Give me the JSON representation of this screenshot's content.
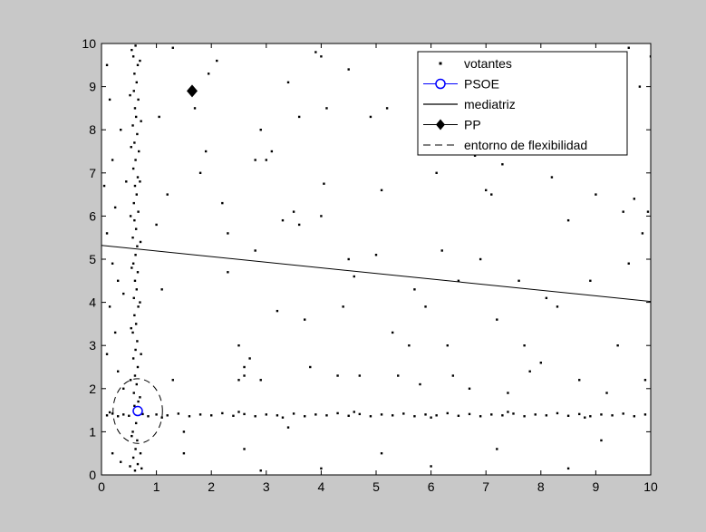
{
  "figure": {
    "background": "#c8c8c8",
    "axes_background": "#ffffff"
  },
  "chart_data": {
    "type": "scatter",
    "title": "",
    "xlabel": "",
    "ylabel": "",
    "xlim": [
      0,
      10
    ],
    "ylim": [
      0,
      10
    ],
    "xticks": [
      "0",
      "1",
      "2",
      "3",
      "4",
      "5",
      "6",
      "7",
      "8",
      "9",
      "10"
    ],
    "yticks": [
      "0",
      "1",
      "2",
      "3",
      "4",
      "5",
      "6",
      "7",
      "8",
      "9",
      "10"
    ],
    "grid": false,
    "legend_position": "top-right",
    "series": [
      {
        "name": "votantes",
        "marker": "dot",
        "color": "#000000",
        "points": [
          [
            0.62,
            9.95
          ],
          [
            0.58,
            9.7
          ],
          [
            0.66,
            9.5
          ],
          [
            0.6,
            9.3
          ],
          [
            0.64,
            9.1
          ],
          [
            0.59,
            8.9
          ],
          [
            0.67,
            8.7
          ],
          [
            0.61,
            8.5
          ],
          [
            0.63,
            8.3
          ],
          [
            0.57,
            8.1
          ],
          [
            0.65,
            7.9
          ],
          [
            0.6,
            7.7
          ],
          [
            0.68,
            7.5
          ],
          [
            0.62,
            7.3
          ],
          [
            0.58,
            7.1
          ],
          [
            0.66,
            6.9
          ],
          [
            0.61,
            6.7
          ],
          [
            0.64,
            6.5
          ],
          [
            0.59,
            6.3
          ],
          [
            0.67,
            6.1
          ],
          [
            0.6,
            5.9
          ],
          [
            0.63,
            5.7
          ],
          [
            0.57,
            5.5
          ],
          [
            0.65,
            5.3
          ],
          [
            0.62,
            5.1
          ],
          [
            0.58,
            4.9
          ],
          [
            0.66,
            4.7
          ],
          [
            0.61,
            4.5
          ],
          [
            0.64,
            4.3
          ],
          [
            0.59,
            4.1
          ],
          [
            0.67,
            3.9
          ],
          [
            0.6,
            3.7
          ],
          [
            0.63,
            3.5
          ],
          [
            0.57,
            3.3
          ],
          [
            0.65,
            3.1
          ],
          [
            0.62,
            2.9
          ],
          [
            0.58,
            2.7
          ],
          [
            0.66,
            2.5
          ],
          [
            0.61,
            2.3
          ],
          [
            0.64,
            2.1
          ],
          [
            0.59,
            1.9
          ],
          [
            0.67,
            1.7
          ],
          [
            0.6,
            1.6
          ],
          [
            0.63,
            1.2
          ],
          [
            0.57,
            1.0
          ],
          [
            0.65,
            0.8
          ],
          [
            0.62,
            0.6
          ],
          [
            0.58,
            0.4
          ],
          [
            0.66,
            0.25
          ],
          [
            0.61,
            0.1
          ],
          [
            0.55,
            9.85
          ],
          [
            0.7,
            9.6
          ],
          [
            0.52,
            8.8
          ],
          [
            0.72,
            8.2
          ],
          [
            0.54,
            7.6
          ],
          [
            0.7,
            6.8
          ],
          [
            0.53,
            6.0
          ],
          [
            0.71,
            5.4
          ],
          [
            0.55,
            4.8
          ],
          [
            0.7,
            4.0
          ],
          [
            0.54,
            3.4
          ],
          [
            0.72,
            2.8
          ],
          [
            0.53,
            2.2
          ],
          [
            0.7,
            1.8
          ],
          [
            0.55,
            0.9
          ],
          [
            0.71,
            0.5
          ],
          [
            0.52,
            0.2
          ],
          [
            0.73,
            0.15
          ],
          [
            0.1,
            1.38
          ],
          [
            0.2,
            1.42
          ],
          [
            0.3,
            1.36
          ],
          [
            0.4,
            1.4
          ],
          [
            0.5,
            1.37
          ],
          [
            0.75,
            1.41
          ],
          [
            0.85,
            1.36
          ],
          [
            1.0,
            1.4
          ],
          [
            1.2,
            1.38
          ],
          [
            1.4,
            1.42
          ],
          [
            1.6,
            1.36
          ],
          [
            1.8,
            1.4
          ],
          [
            2.0,
            1.38
          ],
          [
            2.2,
            1.43
          ],
          [
            2.4,
            1.37
          ],
          [
            2.6,
            1.41
          ],
          [
            2.8,
            1.36
          ],
          [
            3.0,
            1.4
          ],
          [
            3.2,
            1.38
          ],
          [
            3.5,
            1.42
          ],
          [
            3.7,
            1.36
          ],
          [
            3.9,
            1.4
          ],
          [
            4.1,
            1.38
          ],
          [
            4.3,
            1.43
          ],
          [
            4.5,
            1.37
          ],
          [
            4.7,
            1.41
          ],
          [
            4.9,
            1.36
          ],
          [
            5.1,
            1.4
          ],
          [
            5.3,
            1.38
          ],
          [
            5.5,
            1.42
          ],
          [
            5.7,
            1.36
          ],
          [
            5.9,
            1.4
          ],
          [
            6.1,
            1.38
          ],
          [
            6.3,
            1.43
          ],
          [
            6.5,
            1.37
          ],
          [
            6.7,
            1.41
          ],
          [
            6.9,
            1.36
          ],
          [
            7.1,
            1.4
          ],
          [
            7.3,
            1.38
          ],
          [
            7.5,
            1.42
          ],
          [
            7.7,
            1.36
          ],
          [
            7.9,
            1.4
          ],
          [
            8.1,
            1.38
          ],
          [
            8.3,
            1.43
          ],
          [
            8.5,
            1.37
          ],
          [
            8.7,
            1.41
          ],
          [
            8.9,
            1.36
          ],
          [
            9.1,
            1.4
          ],
          [
            9.3,
            1.38
          ],
          [
            9.5,
            1.42
          ],
          [
            9.7,
            1.36
          ],
          [
            9.9,
            1.4
          ],
          [
            0.15,
            1.45
          ],
          [
            1.1,
            1.33
          ],
          [
            2.5,
            1.46
          ],
          [
            3.3,
            1.33
          ],
          [
            4.6,
            1.46
          ],
          [
            6.0,
            1.33
          ],
          [
            7.4,
            1.46
          ],
          [
            8.8,
            1.33
          ],
          [
            0.1,
            9.5
          ],
          [
            0.15,
            8.7
          ],
          [
            0.2,
            7.3
          ],
          [
            0.05,
            6.7
          ],
          [
            0.25,
            6.2
          ],
          [
            0.1,
            5.6
          ],
          [
            0.2,
            4.9
          ],
          [
            0.3,
            4.5
          ],
          [
            0.15,
            3.9
          ],
          [
            0.25,
            3.3
          ],
          [
            0.1,
            2.8
          ],
          [
            0.3,
            2.4
          ],
          [
            0.2,
            0.5
          ],
          [
            0.35,
            0.3
          ],
          [
            0.4,
            4.2
          ],
          [
            0.45,
            6.8
          ],
          [
            0.35,
            8.0
          ],
          [
            0.4,
            2.0
          ],
          [
            1.05,
            8.3
          ],
          [
            1.2,
            6.5
          ],
          [
            1.0,
            5.8
          ],
          [
            1.1,
            4.3
          ],
          [
            1.3,
            2.2
          ],
          [
            1.5,
            0.5
          ],
          [
            1.5,
            1.0
          ],
          [
            1.7,
            8.5
          ],
          [
            1.8,
            7.0
          ],
          [
            1.9,
            7.5
          ],
          [
            1.95,
            9.3
          ],
          [
            2.1,
            9.6
          ],
          [
            2.3,
            5.6
          ],
          [
            2.2,
            6.3
          ],
          [
            2.3,
            4.7
          ],
          [
            2.5,
            2.2
          ],
          [
            2.5,
            3.0
          ],
          [
            2.6,
            2.5
          ],
          [
            2.6,
            2.3
          ],
          [
            2.7,
            2.7
          ],
          [
            2.8,
            7.3
          ],
          [
            2.8,
            5.2
          ],
          [
            2.9,
            8.0
          ],
          [
            2.9,
            2.2
          ],
          [
            2.6,
            0.6
          ],
          [
            3.0,
            7.3
          ],
          [
            3.1,
            7.5
          ],
          [
            3.2,
            3.8
          ],
          [
            3.3,
            5.9
          ],
          [
            3.4,
            1.1
          ],
          [
            3.5,
            6.1
          ],
          [
            3.6,
            8.3
          ],
          [
            3.7,
            3.6
          ],
          [
            3.8,
            2.5
          ],
          [
            3.9,
            9.8
          ],
          [
            4.0,
            9.7
          ],
          [
            4.0,
            6.0
          ],
          [
            4.05,
            6.75
          ],
          [
            4.1,
            8.5
          ],
          [
            4.3,
            2.3
          ],
          [
            4.4,
            3.9
          ],
          [
            4.5,
            5.0
          ],
          [
            4.6,
            4.6
          ],
          [
            4.7,
            2.3
          ],
          [
            4.9,
            8.3
          ],
          [
            5.0,
            5.1
          ],
          [
            5.1,
            0.5
          ],
          [
            5.1,
            6.6
          ],
          [
            5.2,
            8.5
          ],
          [
            5.3,
            3.3
          ],
          [
            5.4,
            2.3
          ],
          [
            5.6,
            3.0
          ],
          [
            5.7,
            4.3
          ],
          [
            5.8,
            2.1
          ],
          [
            5.9,
            3.9
          ],
          [
            6.1,
            7.0
          ],
          [
            6.2,
            5.2
          ],
          [
            6.3,
            3.0
          ],
          [
            6.4,
            2.3
          ],
          [
            6.5,
            4.5
          ],
          [
            6.6,
            8.5
          ],
          [
            6.7,
            2.0
          ],
          [
            6.8,
            7.4
          ],
          [
            6.9,
            5.0
          ],
          [
            7.0,
            6.6
          ],
          [
            7.1,
            6.5
          ],
          [
            7.2,
            3.6
          ],
          [
            7.3,
            7.2
          ],
          [
            7.4,
            1.9
          ],
          [
            7.6,
            4.5
          ],
          [
            7.7,
            3.0
          ],
          [
            7.8,
            2.4
          ],
          [
            8.0,
            2.6
          ],
          [
            8.1,
            4.1
          ],
          [
            8.2,
            6.9
          ],
          [
            8.3,
            3.9
          ],
          [
            8.5,
            5.9
          ],
          [
            8.7,
            2.2
          ],
          [
            8.9,
            4.5
          ],
          [
            9.0,
            6.5
          ],
          [
            9.1,
            0.8
          ],
          [
            9.2,
            1.9
          ],
          [
            9.4,
            3.0
          ],
          [
            9.5,
            6.1
          ],
          [
            9.6,
            4.9
          ],
          [
            9.7,
            6.4
          ],
          [
            9.8,
            9.0
          ],
          [
            9.85,
            5.6
          ],
          [
            9.9,
            2.2
          ],
          [
            9.95,
            6.1
          ],
          [
            10.0,
            9.7
          ],
          [
            9.3,
            7.5
          ],
          [
            8.8,
            8.1
          ],
          [
            7.4,
            9.0
          ],
          [
            6.0,
            9.3
          ],
          [
            4.5,
            9.4
          ],
          [
            3.4,
            9.1
          ],
          [
            7.2,
            0.6
          ],
          [
            6.0,
            0.2
          ],
          [
            4.0,
            0.15
          ],
          [
            2.9,
            0.1
          ],
          [
            8.5,
            0.15
          ],
          [
            9.6,
            9.9
          ],
          [
            1.3,
            9.9
          ],
          [
            3.6,
            5.8
          ]
        ]
      },
      {
        "name": "PSOE",
        "marker": "circle",
        "color": "#0000ff",
        "points": [
          [
            0.66,
            1.48
          ]
        ]
      },
      {
        "name": "mediatriz",
        "marker": "line",
        "color": "#000000",
        "points": [
          [
            0,
            5.32
          ],
          [
            10,
            4.02
          ]
        ]
      },
      {
        "name": "PP",
        "marker": "diamond",
        "color": "#000000",
        "points": [
          [
            1.65,
            8.9
          ]
        ]
      },
      {
        "name": "entorno de flexibilidad",
        "marker": "dashed-circle",
        "color": "#000000",
        "center": [
          0.66,
          1.48
        ],
        "rx": 0.45,
        "ry": 0.75
      }
    ]
  }
}
